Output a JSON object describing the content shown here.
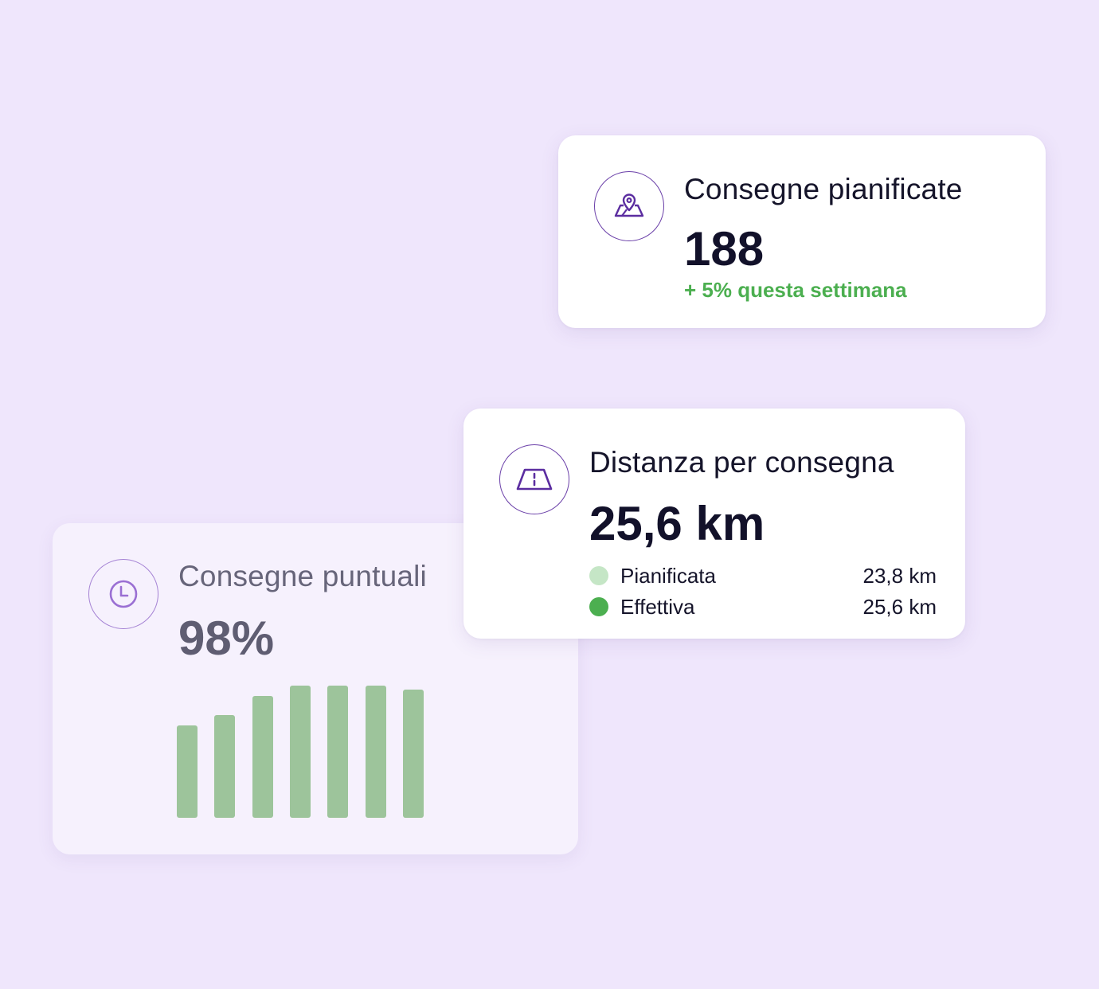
{
  "cards": {
    "puntuali": {
      "title": "Consegne puntuali",
      "value": "98%",
      "icon": "clock-icon",
      "bars": [
        0.7,
        0.78,
        0.92,
        1.0,
        1.0,
        1.0,
        0.97
      ],
      "bar_color": "#9dc49b"
    },
    "pianificate": {
      "title": "Consegne pianificate",
      "value": "188",
      "delta": "+ 5% questa settimana",
      "delta_color": "#4caf50",
      "icon": "map-pin-icon"
    },
    "distanza": {
      "title": "Distanza per consegna",
      "value": "25,6 km",
      "icon": "road-icon",
      "legend": [
        {
          "label": "Pianificata",
          "value": "23,8 km",
          "color": "#c5e6c6"
        },
        {
          "label": "Effettiva",
          "value": "25,6 km",
          "color": "#4caf50"
        }
      ]
    }
  },
  "colors": {
    "background": "#efe6fc",
    "accent": "#6a3fa8"
  }
}
